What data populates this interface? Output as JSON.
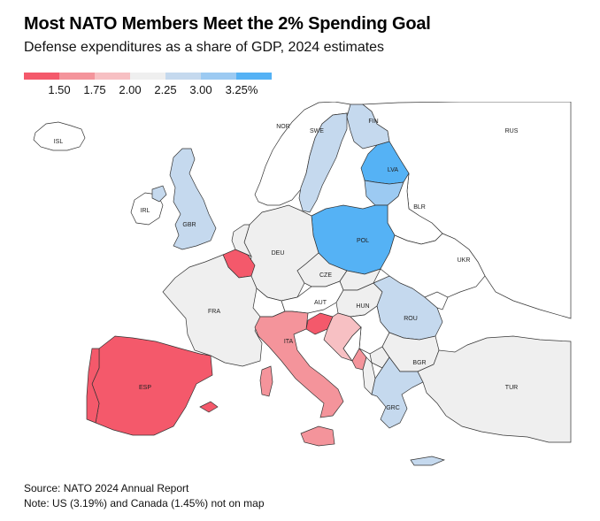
{
  "title": "Most NATO Members Meet the 2% Spending Goal",
  "subtitle": "Defense expenditures as a share of GDP, 2024 estimates",
  "legend": {
    "colors": [
      "#f4596b",
      "#f4949b",
      "#f7c0c3",
      "#efefef",
      "#c5d9ee",
      "#9ccaf2",
      "#55b2f5"
    ],
    "labels": [
      "1.50",
      "1.75",
      "2.00",
      "2.25",
      "3.00",
      "3.25%"
    ]
  },
  "map": {
    "countries": [
      {
        "code": "ISL",
        "fill": "#ffffff"
      },
      {
        "code": "NOR",
        "fill": "#ffffff"
      },
      {
        "code": "SWE",
        "fill": "#c5d9ee"
      },
      {
        "code": "FIN",
        "fill": "#c5d9ee"
      },
      {
        "code": "RUS",
        "fill": "#ffffff"
      },
      {
        "code": "LVA",
        "fill": "#55b2f5"
      },
      {
        "code": "IRL",
        "fill": "#ffffff"
      },
      {
        "code": "GBR",
        "fill": "#c5d9ee"
      },
      {
        "code": "BLR",
        "fill": "#ffffff"
      },
      {
        "code": "POL",
        "fill": "#55b2f5"
      },
      {
        "code": "DEU",
        "fill": "#efefef"
      },
      {
        "code": "UKR",
        "fill": "#ffffff"
      },
      {
        "code": "CZE",
        "fill": "#efefef"
      },
      {
        "code": "FRA",
        "fill": "#efefef"
      },
      {
        "code": "AUT",
        "fill": "#ffffff"
      },
      {
        "code": "HUN",
        "fill": "#efefef"
      },
      {
        "code": "ROU",
        "fill": "#c5d9ee"
      },
      {
        "code": "ITA",
        "fill": "#f4949b"
      },
      {
        "code": "BGR",
        "fill": "#efefef"
      },
      {
        "code": "ESP",
        "fill": "#f4596b"
      },
      {
        "code": "TUR",
        "fill": "#efefef"
      },
      {
        "code": "GRC",
        "fill": "#c5d9ee"
      }
    ]
  },
  "source": "Source: NATO 2024 Annual Report",
  "note": "Note: US (3.19%) and Canada (1.45%) not on map"
}
